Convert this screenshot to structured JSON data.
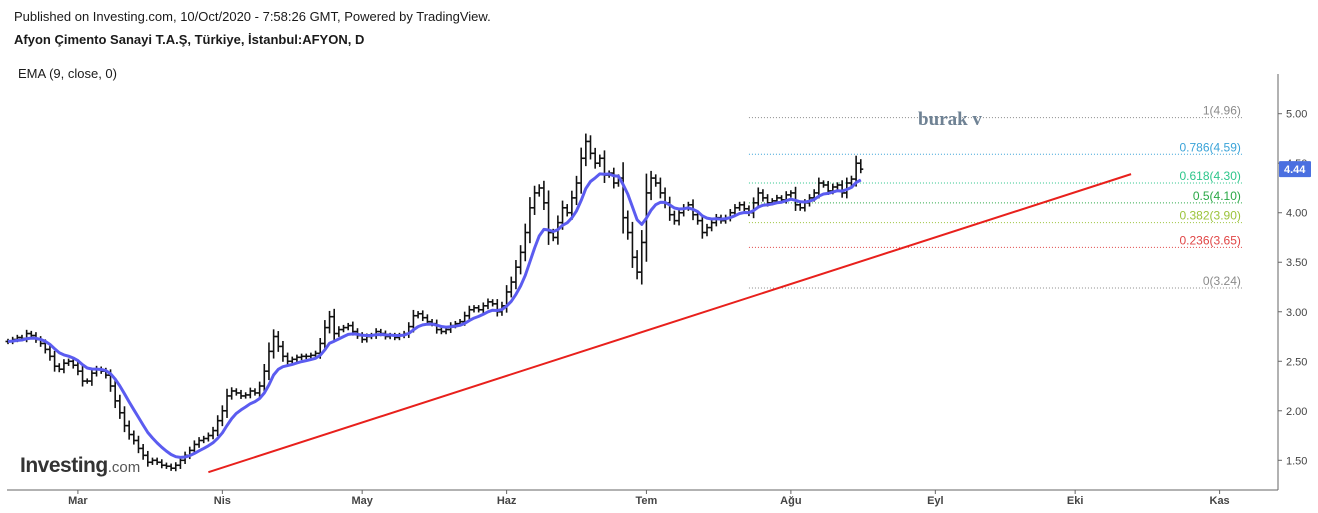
{
  "header": {
    "published": "Published on Investing.com, 10/Oct/2020 - 7:58:26 GMT, Powered by TradingView.",
    "symbol": "Afyon Çimento Sanayi T.A.Ş, Türkiye, İstanbul:AFYON, D"
  },
  "indicator_label": "EMA (9, close, 0)",
  "logo": {
    "main": "Investing",
    "suffix": ".com"
  },
  "annotation": "burak v",
  "colors": {
    "ema": "#5b5cf0",
    "trendline": "#e8201c",
    "bars": "#111111",
    "price_badge": "#4a6fe0"
  },
  "chart_data": {
    "type": "ohlc",
    "ylim": [
      1.2,
      5.3
    ],
    "y_ticks": [
      "1.50",
      "2.00",
      "2.50",
      "3.00",
      "3.50",
      "4.00",
      "4.50",
      "5.00"
    ],
    "x_labels": [
      {
        "label": "Mar",
        "day": 15
      },
      {
        "label": "Nis",
        "day": 46
      },
      {
        "label": "May",
        "day": 76
      },
      {
        "label": "Haz",
        "day": 107
      },
      {
        "label": "Tem",
        "day": 137
      },
      {
        "label": "Ağu",
        "day": 168
      },
      {
        "label": "Eyl",
        "day": 199
      },
      {
        "label": "Eki",
        "day": 229
      },
      {
        "label": "Kas",
        "day": 260
      }
    ],
    "current_price": "4.44",
    "fibonacci": [
      {
        "label": "1(4.96)",
        "value": 4.96,
        "color": "#8a8a8a"
      },
      {
        "label": "0.786(4.59)",
        "value": 4.59,
        "color": "#3aa3d8"
      },
      {
        "label": "0.618(4.30)",
        "value": 4.3,
        "color": "#2cc68a"
      },
      {
        "label": "0.5(4.10)",
        "value": 4.1,
        "color": "#28a745"
      },
      {
        "label": "0.382(3.90)",
        "value": 3.9,
        "color": "#9bc33a"
      },
      {
        "label": "0.236(3.65)",
        "value": 3.65,
        "color": "#e04545"
      },
      {
        "label": "0(3.24)",
        "value": 3.24,
        "color": "#8a8a8a"
      }
    ],
    "fib_range_days": [
      159,
      265
    ],
    "trendline": {
      "start": {
        "day": 43,
        "value": 1.38
      },
      "end": {
        "day": 241,
        "value": 4.39
      }
    },
    "ema_period": 9,
    "close": [
      2.7,
      2.72,
      2.74,
      2.73,
      2.78,
      2.76,
      2.72,
      2.68,
      2.62,
      2.55,
      2.45,
      2.42,
      2.48,
      2.5,
      2.46,
      2.4,
      2.3,
      2.3,
      2.38,
      2.42,
      2.4,
      2.36,
      2.25,
      2.1,
      1.98,
      1.85,
      1.76,
      1.7,
      1.62,
      1.55,
      1.48,
      1.5,
      1.48,
      1.45,
      1.44,
      1.42,
      1.45,
      1.5,
      1.55,
      1.6,
      1.66,
      1.7,
      1.72,
      1.75,
      1.8,
      1.9,
      2.0,
      2.15,
      2.2,
      2.18,
      2.15,
      2.16,
      2.2,
      2.18,
      2.25,
      2.4,
      2.6,
      2.75,
      2.65,
      2.55,
      2.5,
      2.52,
      2.54,
      2.55,
      2.55,
      2.56,
      2.58,
      2.68,
      2.84,
      2.95,
      2.78,
      2.82,
      2.84,
      2.86,
      2.8,
      2.76,
      2.72,
      2.75,
      2.76,
      2.8,
      2.78,
      2.75,
      2.76,
      2.74,
      2.76,
      2.78,
      2.85,
      2.96,
      2.98,
      2.94,
      2.9,
      2.88,
      2.82,
      2.8,
      2.82,
      2.86,
      2.88,
      2.9,
      2.96,
      3.02,
      3.04,
      3.02,
      3.06,
      3.1,
      3.08,
      3.0,
      3.06,
      3.2,
      3.3,
      3.45,
      3.6,
      3.8,
      4.05,
      4.2,
      4.25,
      4.1,
      3.8,
      3.75,
      3.9,
      4.05,
      4.0,
      4.15,
      4.3,
      4.55,
      4.72,
      4.6,
      4.5,
      4.55,
      4.38,
      4.4,
      4.3,
      4.35,
      3.95,
      3.8,
      3.55,
      3.4,
      3.7,
      4.2,
      4.35,
      4.3,
      4.2,
      4.1,
      3.98,
      3.92,
      4.0,
      4.05,
      4.08,
      3.98,
      3.92,
      3.8,
      3.85,
      3.9,
      3.95,
      3.92,
      3.95,
      4.0,
      4.05,
      4.08,
      4.04,
      4.0,
      4.1,
      4.2,
      4.15,
      4.1,
      4.12,
      4.15,
      4.13,
      4.18,
      4.2,
      4.08,
      4.05,
      4.1,
      4.15,
      4.2,
      4.3,
      4.28,
      4.22,
      4.26,
      4.28,
      4.2,
      4.3,
      4.34,
      4.5,
      4.44
    ]
  }
}
